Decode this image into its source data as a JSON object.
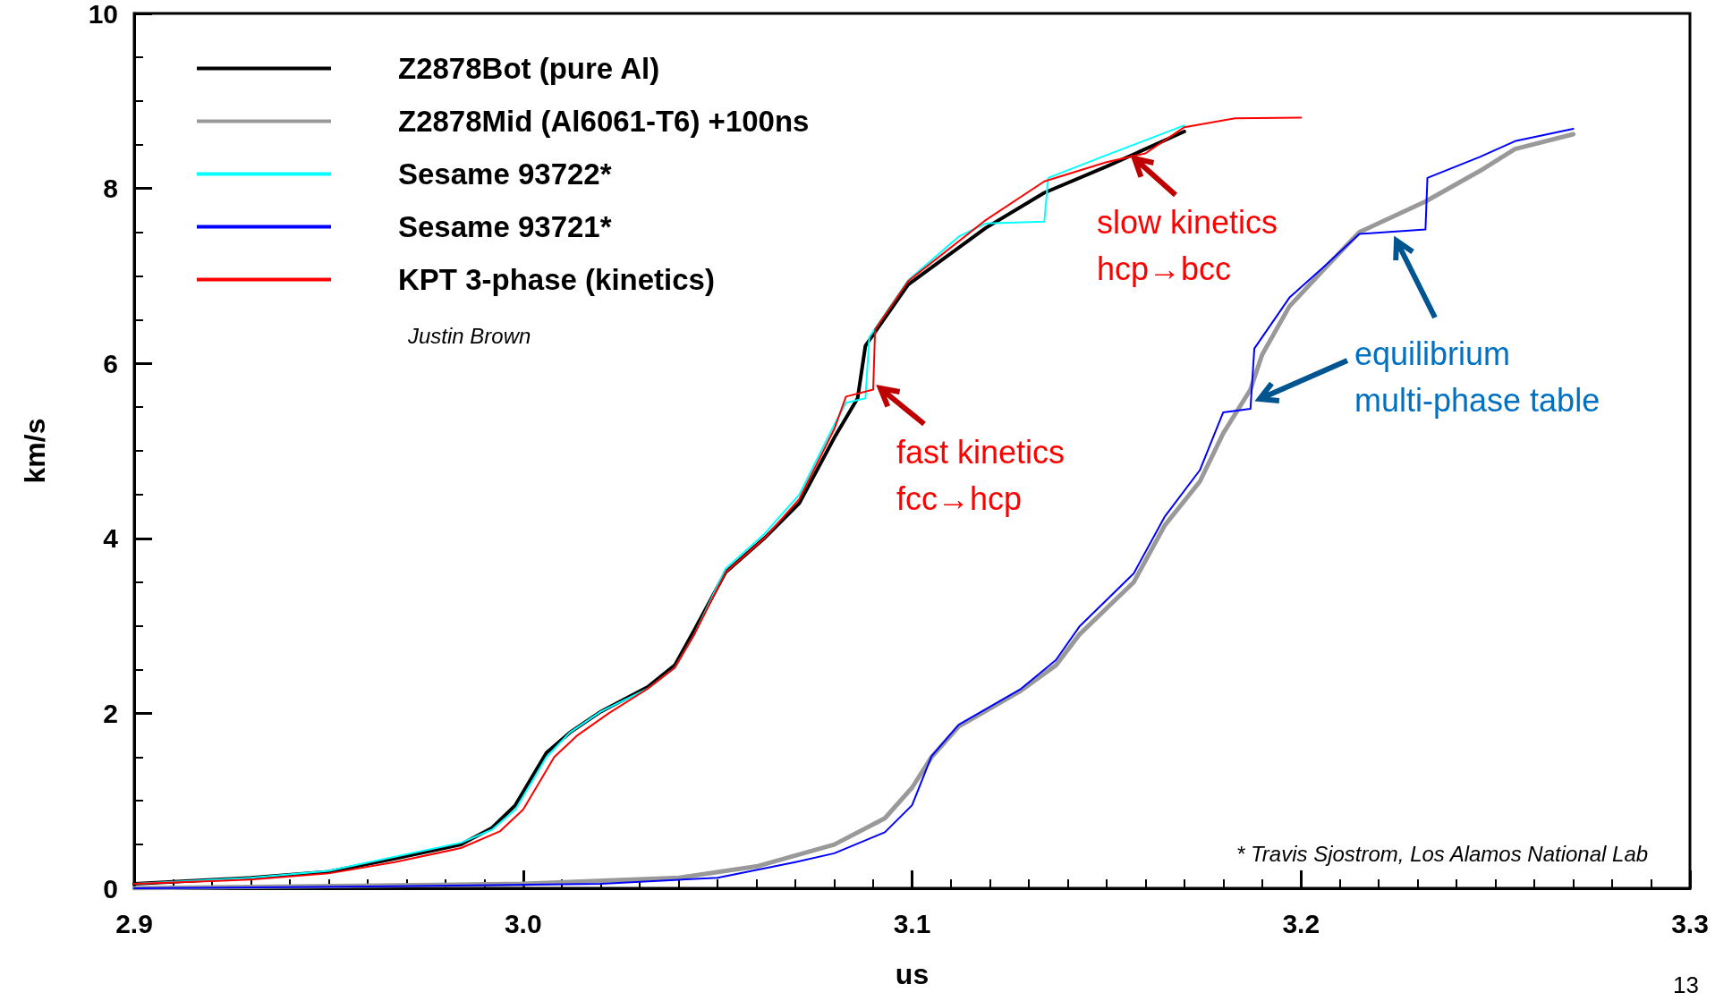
{
  "chart_data": {
    "type": "line",
    "xlabel": "us",
    "ylabel": "km/s",
    "xlim": [
      2.9,
      3.3
    ],
    "xticks": [
      2.9,
      {
        "value": 3,
        "label": "3.0"
      },
      3.1,
      3.2,
      3.3
    ],
    "ylim": [
      0,
      10
    ],
    "yticks": [
      0,
      2,
      4,
      6,
      8,
      10
    ],
    "grid": false,
    "legend": "top left",
    "marker": "none",
    "series": [
      {
        "name": "Z2878Bot (pure Al)",
        "color": "#000000",
        "x": [
          2.9,
          2.93,
          2.95,
          2.967,
          2.984,
          2.992,
          2.998,
          3.002,
          3.006,
          3.012,
          3.02,
          3.032,
          3.039,
          3.044,
          3.052,
          3.062,
          3.071,
          3.08,
          3.086,
          3.088,
          3.099,
          3.119,
          3.134,
          3.15,
          3.17
        ],
        "values": [
          0.05,
          0.12,
          0.19,
          0.34,
          0.5,
          0.69,
          0.95,
          1.25,
          1.55,
          1.78,
          2.02,
          2.3,
          2.55,
          2.95,
          3.61,
          4.0,
          4.4,
          5.15,
          5.6,
          6.2,
          6.9,
          7.55,
          7.95,
          8.25,
          8.65
        ]
      },
      {
        "name": "Z2878Mid (Al6061-T6) +100ns",
        "color": "#999999",
        "x": [
          2.9,
          3.0,
          3.04,
          3.06,
          3.08,
          3.093,
          3.1,
          3.105,
          3.112,
          3.128,
          3.137,
          3.143,
          3.157,
          3.165,
          3.174,
          3.18,
          3.187,
          3.19,
          3.197,
          3.206,
          3.215,
          3.232,
          3.246,
          3.255,
          3.27
        ],
        "values": [
          0.0,
          0.05,
          0.12,
          0.25,
          0.5,
          0.8,
          1.15,
          1.5,
          1.85,
          2.26,
          2.55,
          2.9,
          3.5,
          4.15,
          4.65,
          5.2,
          5.7,
          6.1,
          6.65,
          7.08,
          7.5,
          7.85,
          8.2,
          8.45,
          8.62
        ]
      },
      {
        "name": "Sesame 93722*",
        "color": "#00ffff",
        "x": [
          2.9,
          2.93,
          2.95,
          2.967,
          2.984,
          2.992,
          2.998,
          3.002,
          3.006,
          3.012,
          3.02,
          3.032,
          3.039,
          3.044,
          3.052,
          3.062,
          3.071,
          3.08,
          3.083,
          3.088,
          3.089,
          3.099,
          3.112,
          3.119,
          3.134,
          3.135,
          3.15,
          3.17
        ],
        "values": [
          0.05,
          0.12,
          0.2,
          0.36,
          0.52,
          0.67,
          0.9,
          1.2,
          1.5,
          1.78,
          2.02,
          2.28,
          2.52,
          2.9,
          3.65,
          4.05,
          4.5,
          5.3,
          5.55,
          5.6,
          6.3,
          6.95,
          7.45,
          7.6,
          7.62,
          8.12,
          8.38,
          8.72
        ]
      },
      {
        "name": "Sesame 93721*",
        "color": "#0000ff",
        "x": [
          2.9,
          2.96,
          3.02,
          3.05,
          3.07,
          3.08,
          3.093,
          3.1,
          3.105,
          3.112,
          3.128,
          3.137,
          3.143,
          3.157,
          3.165,
          3.174,
          3.18,
          3.187,
          3.188,
          3.197,
          3.206,
          3.215,
          3.232,
          3.2325,
          3.246,
          3.255,
          3.27
        ],
        "values": [
          0.0,
          0.02,
          0.05,
          0.12,
          0.3,
          0.4,
          0.64,
          0.95,
          1.51,
          1.87,
          2.28,
          2.61,
          2.99,
          3.6,
          4.25,
          4.78,
          5.44,
          5.48,
          6.17,
          6.75,
          7.11,
          7.48,
          7.53,
          8.12,
          8.36,
          8.54,
          8.68
        ]
      },
      {
        "name": "KPT 3-phase (kinetics)",
        "color": "#ff0000",
        "x": [
          2.9,
          2.93,
          2.95,
          2.967,
          2.984,
          2.994,
          3.0,
          3.004,
          3.008,
          3.014,
          3.022,
          3.032,
          3.039,
          3.044,
          3.052,
          3.062,
          3.071,
          3.08,
          3.083,
          3.09,
          3.0905,
          3.099,
          3.119,
          3.134,
          3.15,
          3.16,
          3.17,
          3.183,
          3.2
        ],
        "values": [
          0.05,
          0.1,
          0.17,
          0.3,
          0.46,
          0.65,
          0.9,
          1.2,
          1.5,
          1.75,
          2.0,
          2.28,
          2.52,
          2.9,
          3.61,
          4.0,
          4.45,
          5.25,
          5.62,
          5.7,
          6.39,
          6.94,
          7.64,
          8.08,
          8.3,
          8.4,
          8.7,
          8.8,
          8.81
        ]
      }
    ],
    "annotations": [
      "fast kinetics\nfcc→hcp",
      "slow kinetics\nhcp→bcc",
      "equilibrium\nmulti-phase table",
      "Justin Brown",
      "* Travis Sjostrom, Los Alamos National Lab",
      "13"
    ]
  }
}
